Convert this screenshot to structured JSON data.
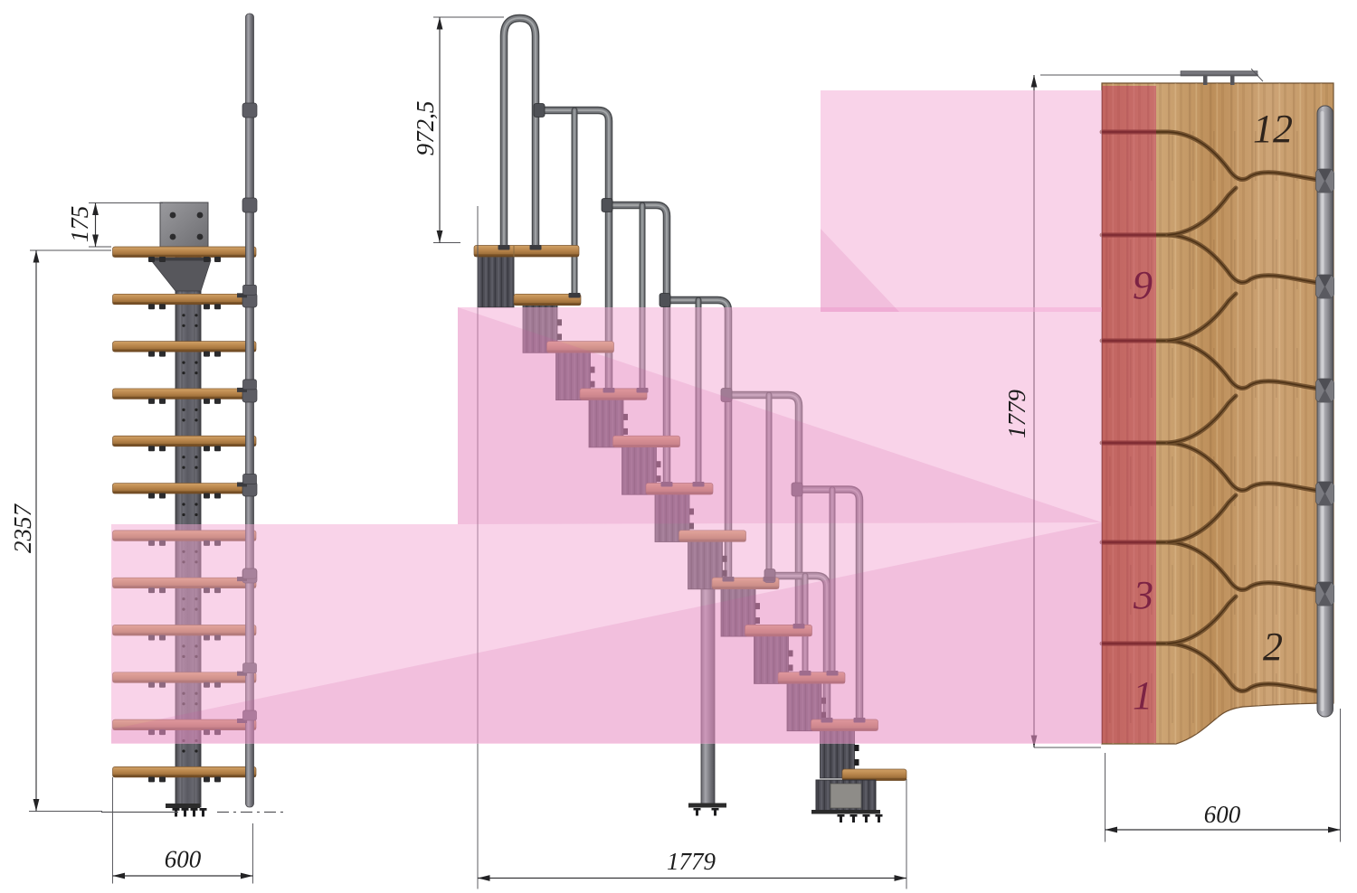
{
  "drawing_type": "modular staircase technical drawing, three views with highlighted projection zones",
  "front_view": {
    "dim_plate_offset": "175",
    "dim_total_height": "2357",
    "dim_width": "600"
  },
  "side_view": {
    "dim_handrail_height": "972,5",
    "dim_total_run": "1779"
  },
  "plan_view": {
    "dim_total_run": "1779",
    "dim_width": "600",
    "step_numbers": {
      "n12": "12",
      "n9": "9",
      "n3": "3",
      "n2": "2",
      "n1": "1"
    }
  },
  "colors": {
    "background": "#ffffff",
    "wood_tread": "#b8854b",
    "wood_plan": "#c49a6a",
    "wood_groove": "#6f4e2c",
    "metal_rail": "#7e8084",
    "metal_dark": "#46484b",
    "module_gray": "#4f4f57",
    "overlay_pink": "rgba(243,167,211,0.5)",
    "overlay_red": "rgba(189,28,88,0.41)",
    "dim_text": "#1c1c1c",
    "number_dark": "#2f241c",
    "number_red": "#7c2344"
  }
}
